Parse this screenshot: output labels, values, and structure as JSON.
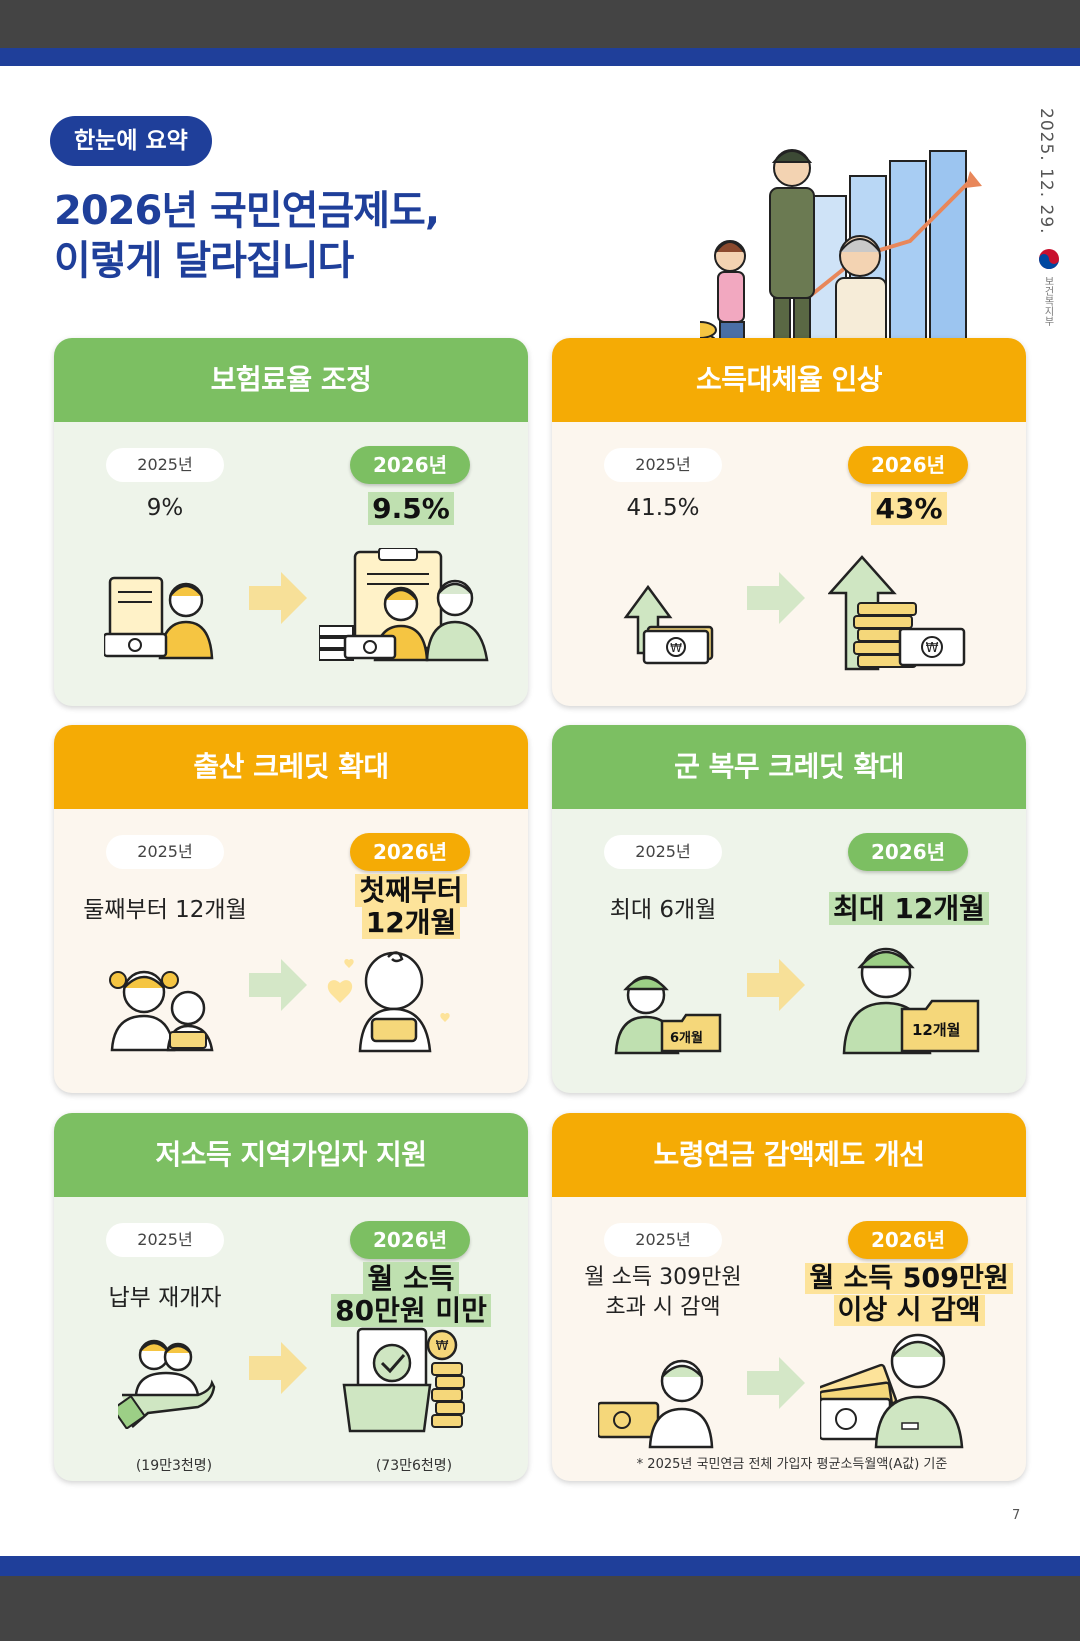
{
  "header": {
    "summary_label": "한눈에 요약",
    "title_line1": "2026년 국민연금제도,",
    "title_line2": "이렇게 달라집니다",
    "date": "2025. 12. 29.",
    "ministry": "보건복지부"
  },
  "cards": [
    {
      "title": "보험료율 조정",
      "old_year": "2025년",
      "new_year": "2026년",
      "old_value": "9%",
      "new_value": "9.5%"
    },
    {
      "title": "소득대체율 인상",
      "old_year": "2025년",
      "new_year": "2026년",
      "old_value": "41.5%",
      "new_value": "43%"
    },
    {
      "title": "출산 크레딧 확대",
      "old_year": "2025년",
      "new_year": "2026년",
      "old_value": "둘째부터 12개월",
      "new_value_line1": "첫째부터",
      "new_value_line2": "12개월"
    },
    {
      "title": "군 복무 크레딧 확대",
      "old_year": "2025년",
      "new_year": "2026년",
      "old_value": "최대 6개월",
      "new_value": "최대 12개월",
      "old_folder": "6개월",
      "new_folder": "12개월"
    },
    {
      "title": "저소득 지역가입자 지원",
      "old_year": "2025년",
      "new_year": "2026년",
      "old_value": "납부 재개자",
      "new_value_line1": "월 소득",
      "new_value_line2": "80만원 미만",
      "old_sub": "(19만3천명)",
      "new_sub": "(73만6천명)"
    },
    {
      "title": "노령연금 감액제도 개선",
      "old_year": "2025년",
      "new_year": "2026년",
      "old_value_line1": "월 소득 309만원",
      "old_value_line2": "초과 시 감액",
      "new_value_line1": "월 소득 509만원",
      "new_value_line2": "이상 시 감액",
      "footnote": "* 2025년 국민연금 전체 가입자 평균소득월액(A값) 기준"
    }
  ],
  "page_number": "7",
  "colors": {
    "navy": "#1f3f9a",
    "green": "#7cbf62",
    "orange": "#f5ab05",
    "highlight": "#fde39a"
  }
}
